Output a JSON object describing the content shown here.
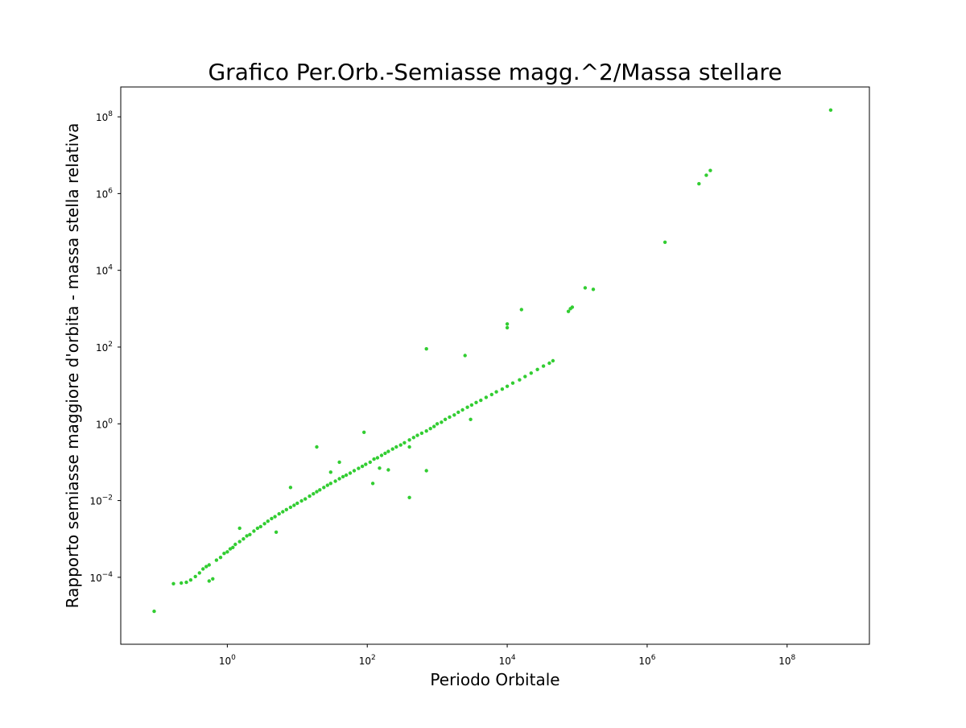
{
  "chart_data": {
    "type": "scatter",
    "title": "Grafico Per.Orb.-Semiasse magg.^2/Massa stellare",
    "xlabel": "Periodo Orbitale",
    "ylabel": "Rapporto semiasse maggiore d'orbita - massa stella relativa",
    "xscale": "log",
    "yscale": "log",
    "xlim": [
      0.03,
      1500000000.0
    ],
    "ylim": [
      1.8e-06,
      600000000.0
    ],
    "grid": false,
    "legend": "none",
    "marker_color": "#32cd32",
    "x_ticks": [
      {
        "base": "10",
        "exp": "0",
        "value": 1
      },
      {
        "base": "10",
        "exp": "2",
        "value": 100
      },
      {
        "base": "10",
        "exp": "4",
        "value": 10000
      },
      {
        "base": "10",
        "exp": "6",
        "value": 1000000
      },
      {
        "base": "10",
        "exp": "8",
        "value": 100000000
      }
    ],
    "y_ticks": [
      {
        "base": "10",
        "exp": "−4",
        "value": 0.0001
      },
      {
        "base": "10",
        "exp": "−2",
        "value": 0.01
      },
      {
        "base": "10",
        "exp": "0",
        "value": 1
      },
      {
        "base": "10",
        "exp": "2",
        "value": 100
      },
      {
        "base": "10",
        "exp": "4",
        "value": 10000
      },
      {
        "base": "10",
        "exp": "6",
        "value": 1000000
      },
      {
        "base": "10",
        "exp": "8",
        "value": 100000000
      }
    ],
    "points": [
      [
        0.09,
        1.3e-05
      ],
      [
        0.17,
        6.8e-05
      ],
      [
        0.22,
        7.1e-05
      ],
      [
        0.26,
        7.4e-05
      ],
      [
        0.3,
        8.5e-05
      ],
      [
        0.35,
        0.000105
      ],
      [
        0.4,
        0.00013
      ],
      [
        0.45,
        0.000165
      ],
      [
        0.5,
        0.00019
      ],
      [
        0.55,
        0.00021
      ],
      [
        0.62,
        9.1e-05
      ],
      [
        0.7,
        0.00028
      ],
      [
        0.8,
        0.00033
      ],
      [
        0.9,
        0.00042
      ],
      [
        1.0,
        0.00046
      ],
      [
        1.1,
        0.00055
      ],
      [
        1.2,
        0.0006
      ],
      [
        1.3,
        0.00072
      ],
      [
        1.5,
        0.00085
      ],
      [
        1.7,
        0.001
      ],
      [
        1.9,
        0.0012
      ],
      [
        2.1,
        0.0013
      ],
      [
        2.4,
        0.0016
      ],
      [
        2.7,
        0.0019
      ],
      [
        3.0,
        0.0021
      ],
      [
        3.4,
        0.0025
      ],
      [
        3.8,
        0.0029
      ],
      [
        4.3,
        0.0034
      ],
      [
        4.8,
        0.0038
      ],
      [
        5.5,
        0.0045
      ],
      [
        6.2,
        0.0051
      ],
      [
        7.0,
        0.0058
      ],
      [
        8.0,
        0.0067
      ],
      [
        9.0,
        0.0075
      ],
      [
        10.0,
        0.0085
      ],
      [
        11.5,
        0.0098
      ],
      [
        13.0,
        0.011
      ],
      [
        15.0,
        0.013
      ],
      [
        17.0,
        0.015
      ],
      [
        19.0,
        0.017
      ],
      [
        21.0,
        0.019
      ],
      [
        24.0,
        0.022
      ],
      [
        27.0,
        0.025
      ],
      [
        30.0,
        0.028
      ],
      [
        35.0,
        0.032
      ],
      [
        40.0,
        0.037
      ],
      [
        45.0,
        0.042
      ],
      [
        50.0,
        0.046
      ],
      [
        57.0,
        0.052
      ],
      [
        65.0,
        0.06
      ],
      [
        75.0,
        0.069
      ],
      [
        85.0,
        0.078
      ],
      [
        95.0,
        0.088
      ],
      [
        110.0,
        0.1
      ],
      [
        125.0,
        0.12
      ],
      [
        140.0,
        0.13
      ],
      [
        160.0,
        0.15
      ],
      [
        180.0,
        0.17
      ],
      [
        200.0,
        0.19
      ],
      [
        230.0,
        0.22
      ],
      [
        260.0,
        0.25
      ],
      [
        300.0,
        0.28
      ],
      [
        340.0,
        0.32
      ],
      [
        400.0,
        0.38
      ],
      [
        460.0,
        0.44
      ],
      [
        520.0,
        0.5
      ],
      [
        600.0,
        0.57
      ],
      [
        700.0,
        0.65
      ],
      [
        800.0,
        0.75
      ],
      [
        900.0,
        0.85
      ],
      [
        1000.0,
        1.0
      ],
      [
        1150.0,
        1.1
      ],
      [
        1300.0,
        1.3
      ],
      [
        1500.0,
        1.5
      ],
      [
        1750.0,
        1.7
      ],
      [
        2000.0,
        2.0
      ],
      [
        2300.0,
        2.3
      ],
      [
        2700.0,
        2.7
      ],
      [
        3100.0,
        3.1
      ],
      [
        3600.0,
        3.6
      ],
      [
        4200.0,
        4.1
      ],
      [
        5000.0,
        4.9
      ],
      [
        6000.0,
        5.8
      ],
      [
        7000.0,
        6.8
      ],
      [
        8500.0,
        8.0
      ],
      [
        10000.0,
        9.5
      ],
      [
        12000.0,
        11.5
      ],
      [
        15000.0,
        14.0
      ],
      [
        18000.0,
        17.0
      ],
      [
        22000.0,
        21.0
      ],
      [
        27000.0,
        26.0
      ],
      [
        33000.0,
        32.0
      ],
      [
        40000.0,
        38.0
      ],
      [
        45000.0,
        44.0
      ],
      [
        75000.0,
        850
      ],
      [
        80000.0,
        1000
      ],
      [
        85000.0,
        1100
      ],
      [
        130000.0,
        3500
      ],
      [
        170000.0,
        3200
      ],
      [
        16000.0,
        950
      ],
      [
        10000.0,
        320
      ],
      [
        10000.0,
        400
      ],
      [
        700.0,
        90
      ],
      [
        2500.0,
        60
      ],
      [
        3000.0,
        1.3
      ],
      [
        400.0,
        0.25
      ],
      [
        700.0,
        0.06
      ],
      [
        400.0,
        0.012
      ],
      [
        120.0,
        0.028
      ],
      [
        200.0,
        0.063
      ],
      [
        150.0,
        0.07
      ],
      [
        90.0,
        0.6
      ],
      [
        19.0,
        0.25
      ],
      [
        40.0,
        0.1
      ],
      [
        8.0,
        0.022
      ],
      [
        5.0,
        0.0015
      ],
      [
        1.5,
        0.0019
      ],
      [
        0.55,
        8e-05
      ],
      [
        30.0,
        0.055
      ],
      [
        1800000.0,
        54000
      ],
      [
        5500000.0,
        1800000
      ],
      [
        7000000.0,
        3000000
      ],
      [
        8000000.0,
        4000000
      ],
      [
        420000000.0,
        150000000
      ]
    ]
  }
}
